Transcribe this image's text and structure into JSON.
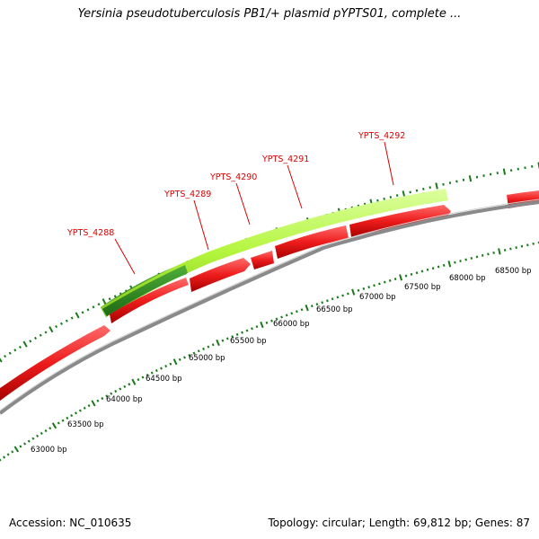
{
  "title": "Yersinia pseudotuberculosis PB1/+ plasmid pYPTS01, complete ...",
  "footer": {
    "accession_label": "Accession:",
    "accession": "NC_010635",
    "topology_label": "Topology:",
    "topology": "circular",
    "length_label": "Length:",
    "length": "69,812 bp",
    "genes_label": "Genes:",
    "genes": "87"
  },
  "colors": {
    "gene_forward": "#b4f53c",
    "gene_selected": "#2a8a1e",
    "gene_reverse": "#ee1c1c",
    "label": "#dd0000",
    "backbone": "#808080",
    "tick": "#1a7a1a"
  },
  "ruler": {
    "labels": [
      "63000 bp",
      "63500 bp",
      "64000 bp",
      "64500 bp",
      "65000 bp",
      "65500 bp",
      "66000 bp",
      "66500 bp",
      "67000 bp",
      "67500 bp",
      "68000 bp",
      "68500 bp"
    ]
  },
  "genes": [
    {
      "id": "YPTS_4288",
      "labeled": true
    },
    {
      "id": "YPTS_4289",
      "labeled": true
    },
    {
      "id": "YPTS_4290",
      "labeled": true
    },
    {
      "id": "YPTS_4291",
      "labeled": true
    },
    {
      "id": "YPTS_4292",
      "labeled": true
    }
  ]
}
